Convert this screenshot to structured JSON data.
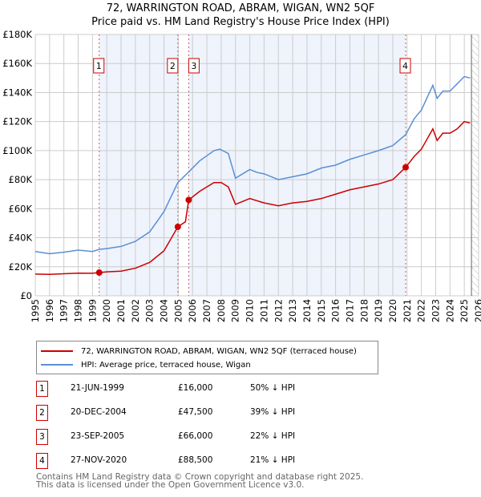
{
  "title": "72, WARRINGTON ROAD, ABRAM, WIGAN, WN2 5QF",
  "subtitle": "Price paid vs. HM Land Registry's House Price Index (HPI)",
  "colors": {
    "price": "#cc0000",
    "hpi": "#5b8fd4",
    "shade": "#eef3fc"
  },
  "chart_data": {
    "type": "line",
    "xlim": [
      1995,
      2026
    ],
    "ylim": [
      0,
      180000
    ],
    "yticks": [
      0,
      20000,
      40000,
      60000,
      80000,
      100000,
      120000,
      140000,
      160000,
      180000
    ],
    "ytick_labels": [
      "£0",
      "£20K",
      "£40K",
      "£60K",
      "£80K",
      "£100K",
      "£120K",
      "£140K",
      "£160K",
      "£180K"
    ],
    "xticks": [
      "1995",
      "1996",
      "1997",
      "1998",
      "1999",
      "2000",
      "2001",
      "2002",
      "2003",
      "2004",
      "2005",
      "2006",
      "2007",
      "2008",
      "2009",
      "2010",
      "2011",
      "2012",
      "2013",
      "2014",
      "2015",
      "2016",
      "2017",
      "2018",
      "2019",
      "2020",
      "2021",
      "2022",
      "2023",
      "2024",
      "2025",
      "2026"
    ],
    "grid": true,
    "legend_position": "below",
    "series": [
      {
        "name": "72, WARRINGTON ROAD, ABRAM, WIGAN, WN2 5QF (terraced house)",
        "x": [
          1995,
          1996,
          1997,
          1998,
          1999,
          1999.47,
          2000,
          2001,
          2002,
          2003,
          2004,
          2004.97,
          2005.5,
          2005.73,
          2006.5,
          2007.5,
          2008,
          2008.5,
          2009,
          2010,
          2011,
          2012,
          2013,
          2014,
          2015,
          2016,
          2017,
          2018,
          2019,
          2020,
          2020.9,
          2021.5,
          2022,
          2022.8,
          2023.1,
          2023.5,
          2024,
          2024.5,
          2025,
          2025.4
        ],
        "y": [
          15000,
          14800,
          15200,
          15600,
          15500,
          16000,
          16500,
          17000,
          19000,
          23000,
          31000,
          47500,
          51000,
          66000,
          72000,
          78000,
          78000,
          75000,
          63000,
          67000,
          64000,
          62000,
          64000,
          65000,
          67000,
          70000,
          73000,
          75000,
          77000,
          80000,
          88500,
          96000,
          101000,
          115000,
          107000,
          112000,
          112000,
          115000,
          120000,
          119000
        ]
      },
      {
        "name": "HPI: Average price, terraced house, Wigan",
        "x": [
          1995,
          1996,
          1997,
          1998,
          1999,
          1999.47,
          2000,
          2001,
          2002,
          2003,
          2004,
          2004.97,
          2005.7,
          2006.5,
          2007.5,
          2007.9,
          2008.5,
          2009,
          2010,
          2010.5,
          2011,
          2012,
          2013,
          2014,
          2015,
          2016,
          2017,
          2018,
          2019,
          2020,
          2020.9,
          2021.5,
          2022,
          2022.8,
          2023.1,
          2023.5,
          2024,
          2024.5,
          2025,
          2025.4
        ],
        "y": [
          30500,
          29000,
          30000,
          31500,
          30500,
          32000,
          32500,
          34000,
          37500,
          44000,
          58000,
          78000,
          85000,
          93000,
          100000,
          101000,
          98000,
          81000,
          87000,
          85000,
          84000,
          80000,
          82000,
          84000,
          88000,
          90000,
          94000,
          97000,
          100000,
          103500,
          111000,
          122000,
          128000,
          145000,
          136000,
          141000,
          141000,
          146000,
          151000,
          150000
        ]
      }
    ],
    "sales": [
      {
        "label": "1",
        "x": 1999.47,
        "y": 16000
      },
      {
        "label": "2",
        "x": 2004.97,
        "y": 47500
      },
      {
        "label": "3",
        "x": 2005.73,
        "y": 66000
      },
      {
        "label": "4",
        "x": 2020.9,
        "y": 88500
      }
    ],
    "forecast_from": 2025.5
  },
  "table": [
    {
      "num": "1",
      "date": "21-JUN-1999",
      "price": "£16,000",
      "hpi": "50% ↓ HPI"
    },
    {
      "num": "2",
      "date": "20-DEC-2004",
      "price": "£47,500",
      "hpi": "39% ↓ HPI"
    },
    {
      "num": "3",
      "date": "23-SEP-2005",
      "price": "£66,000",
      "hpi": "22% ↓ HPI"
    },
    {
      "num": "4",
      "date": "27-NOV-2020",
      "price": "£88,500",
      "hpi": "21% ↓ HPI"
    }
  ],
  "footer": [
    "Contains HM Land Registry data © Crown copyright and database right 2025.",
    "This data is licensed under the Open Government Licence v3.0."
  ]
}
